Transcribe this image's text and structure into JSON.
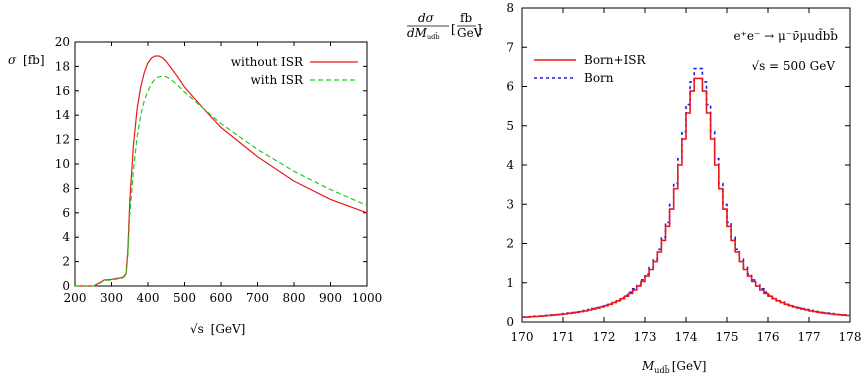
{
  "chart_data": [
    {
      "type": "line",
      "ylabel_symbol": "σ",
      "ylabel_unit": "[fb]",
      "xlabel_symbol": "√s",
      "xlabel_unit": "[GeV]",
      "xlim": [
        200,
        1000
      ],
      "ylim": [
        0,
        20
      ],
      "xticks": [
        200,
        300,
        400,
        500,
        600,
        700,
        800,
        900,
        1000
      ],
      "yticks": [
        0,
        2,
        4,
        6,
        8,
        10,
        12,
        14,
        16,
        18,
        20
      ],
      "grid": false,
      "legend_position": "top-right",
      "series": [
        {
          "name": "without ISR",
          "color": "#e8191b",
          "dash": "solid",
          "x": [
            200,
            250,
            270,
            280,
            300,
            320,
            330,
            340,
            345,
            350,
            360,
            370,
            380,
            390,
            400,
            410,
            420,
            430,
            440,
            450,
            460,
            480,
            500,
            550,
            600,
            700,
            800,
            900,
            1000
          ],
          "y": [
            0,
            0,
            0.3,
            0.5,
            0.55,
            0.65,
            0.7,
            1.0,
            3.0,
            7.0,
            11.5,
            14.5,
            16.3,
            17.5,
            18.3,
            18.7,
            18.85,
            18.85,
            18.7,
            18.4,
            18.0,
            17.2,
            16.3,
            14.6,
            13.0,
            10.6,
            8.6,
            7.1,
            6.0
          ]
        },
        {
          "name": "with ISR",
          "color": "#22cc22",
          "dash": "dashed",
          "x": [
            200,
            250,
            270,
            280,
            300,
            320,
            330,
            340,
            345,
            350,
            360,
            370,
            380,
            390,
            400,
            410,
            420,
            430,
            440,
            450,
            460,
            480,
            500,
            550,
            600,
            700,
            800,
            900,
            1000
          ],
          "y": [
            0,
            0,
            0.25,
            0.45,
            0.5,
            0.6,
            0.65,
            0.9,
            2.5,
            5.8,
            9.5,
            12.2,
            14.0,
            15.2,
            16.0,
            16.6,
            17.0,
            17.15,
            17.2,
            17.15,
            17.0,
            16.5,
            15.9,
            14.6,
            13.3,
            11.2,
            9.4,
            7.9,
            6.6
          ]
        }
      ]
    },
    {
      "type": "line",
      "ylabel": "dσ/dM_{udb} [fb/GeV]",
      "ylabel_num": "dσ",
      "ylabel_den": "dM",
      "ylabel_den_sub": "udb̄",
      "ylabel_unit_num": "fb",
      "ylabel_unit_den": "GeV",
      "xlabel_main": "M",
      "xlabel_sub": "udb̄",
      "xlabel_unit": "[GeV]",
      "process": "e⁺e⁻ → μ⁻ν̄μud̄bb̄",
      "energy": "√s = 500 GeV",
      "xlim": [
        170,
        178
      ],
      "ylim": [
        0,
        8
      ],
      "xticks": [
        170,
        171,
        172,
        173,
        174,
        175,
        176,
        177,
        178
      ],
      "yticks": [
        0,
        1,
        2,
        3,
        4,
        5,
        6,
        7,
        8
      ],
      "grid": false,
      "legend_position": "top-left",
      "histogram": true,
      "bin_width": 0.1,
      "peak_mass": 174.3,
      "series": [
        {
          "name": "Born+ISR",
          "color": "#e8191b",
          "dash": "solid",
          "peak": 6.25,
          "gamma": 1.2
        },
        {
          "name": "Born",
          "color": "#1a1aee",
          "dash": "dotted",
          "peak": 6.5,
          "gamma": 1.2
        }
      ]
    }
  ]
}
